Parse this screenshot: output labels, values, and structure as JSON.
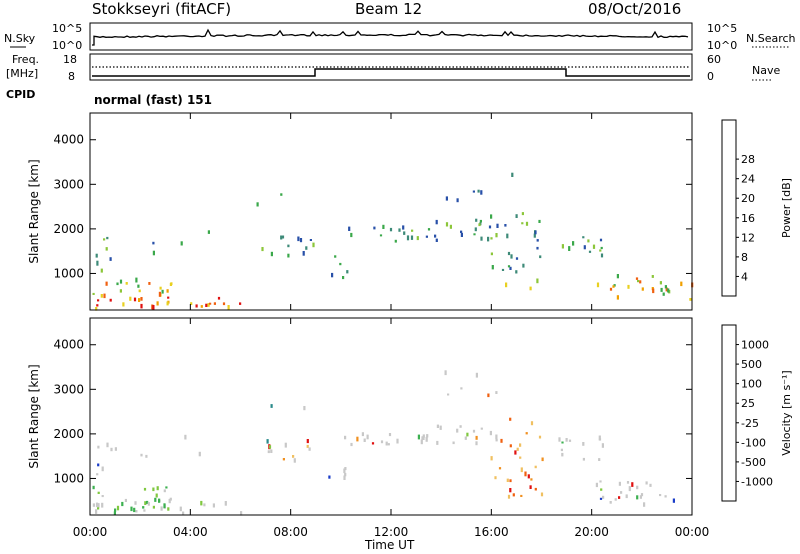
{
  "header": {
    "title": "Stokkseyri (fitACF)",
    "beam": "Beam 12",
    "date": "08/Oct/2016"
  },
  "strip": {
    "nsky_label": "N.Sky",
    "nsearch_label": "N.Search",
    "freq_label_1": "Freq.",
    "freq_label_2": "[MHz]",
    "nave_label": "Nave",
    "cpid_label": "CPID",
    "cpid_text": "normal (fast) 151",
    "nsky_ticks": [
      "10^5",
      "10^0"
    ],
    "nsearch_ticks": [
      "10^5",
      "10^0"
    ],
    "freq_ticks": [
      "18",
      "8"
    ],
    "nave_ticks": [
      "60",
      "0"
    ]
  },
  "chart_data": [
    {
      "type": "heatmap",
      "title": "",
      "ylabel": "Slant Range [km]",
      "xlabel": "",
      "ylim": [
        180,
        4600
      ],
      "xlim": [
        0,
        24
      ],
      "x_ticks": [
        0,
        4,
        8,
        12,
        16,
        20,
        24
      ],
      "y_ticks": [
        1000,
        2000,
        3000,
        4000
      ],
      "colorbar": {
        "label": "Power [dB]",
        "ticks": [
          "4",
          "8",
          "12",
          "16",
          "20",
          "24",
          "28"
        ],
        "colors": [
          "#1020e0",
          "#2850a8",
          "#3d8a78",
          "#3aa84a",
          "#8cc63a",
          "#e8d020",
          "#f0a000",
          "#f06010",
          "#e01010"
        ]
      }
    },
    {
      "type": "heatmap",
      "title": "",
      "ylabel": "Slant Range [km]",
      "xlabel": "Time UT",
      "ylim": [
        180,
        4600
      ],
      "xlim": [
        0,
        24
      ],
      "x_ticks": [
        0,
        4,
        8,
        12,
        16,
        20,
        24
      ],
      "x_tick_labels": [
        "00:00",
        "04:00",
        "08:00",
        "12:00",
        "16:00",
        "20:00",
        "00:00"
      ],
      "y_ticks": [
        1000,
        2000,
        3000,
        4000
      ],
      "colorbar": {
        "label": "Velocity [m s⁻¹]",
        "ticks": [
          "1000",
          "500",
          "100",
          "25",
          "-25",
          "-100",
          "-500",
          "-1000"
        ],
        "colors": [
          "#1a3cc8",
          "#2a8a8a",
          "#3cb050",
          "#80c840",
          "#c8c8c8",
          "#f0c060",
          "#f09020",
          "#f06010",
          "#e01010"
        ]
      }
    }
  ]
}
